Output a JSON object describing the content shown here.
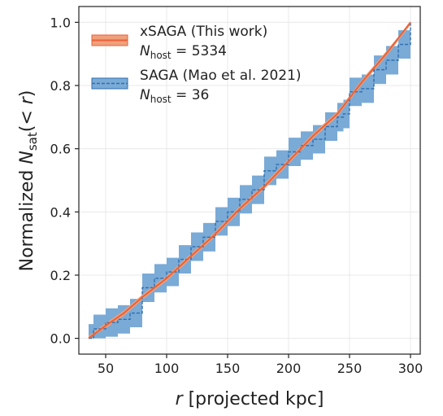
{
  "chart_data": {
    "type": "line",
    "xlabel": "r [projected kpc]",
    "ylabel": "Normalized N_sat(< r)",
    "xlim": [
      28,
      308
    ],
    "ylim": [
      -0.05,
      1.05
    ],
    "xticks": [
      50,
      100,
      150,
      200,
      250,
      300
    ],
    "yticks": [
      0.0,
      0.2,
      0.4,
      0.6,
      0.8,
      1.0
    ],
    "xtick_labels": [
      "50",
      "100",
      "150",
      "200",
      "250",
      "300"
    ],
    "ytick_labels": [
      "0.0",
      "0.2",
      "0.4",
      "0.6",
      "0.8",
      "1.0"
    ],
    "grid": true,
    "legend_position": "top-left",
    "series": [
      {
        "name": "xSAGA (This work)",
        "n_host_label": "N_host = 5334",
        "color": "#e8623a",
        "band_color": "#f0a07a",
        "style": "solid",
        "x": [
          36,
          50,
          65,
          80,
          100,
          120,
          140,
          160,
          180,
          200,
          220,
          240,
          250,
          260,
          280,
          300
        ],
        "y": [
          0.0,
          0.04,
          0.08,
          0.13,
          0.19,
          0.26,
          0.33,
          0.41,
          0.48,
          0.56,
          0.64,
          0.71,
          0.76,
          0.81,
          0.9,
          1.0
        ],
        "band_halfwidth": 0.008
      },
      {
        "name": "SAGA (Mao et al. 2021)",
        "n_host_label": "N_host = 36",
        "color": "#2f6fb0",
        "band_color": "#7aaad6",
        "style": "dashed",
        "x": [
          36,
          40,
          50,
          60,
          70,
          80,
          90,
          100,
          110,
          120,
          130,
          140,
          150,
          160,
          170,
          180,
          190,
          200,
          210,
          220,
          230,
          240,
          245,
          250,
          260,
          270,
          280,
          290,
          300
        ],
        "y": [
          0.0,
          0.03,
          0.05,
          0.06,
          0.08,
          0.16,
          0.19,
          0.21,
          0.25,
          0.29,
          0.32,
          0.37,
          0.4,
          0.44,
          0.47,
          0.53,
          0.55,
          0.59,
          0.61,
          0.63,
          0.67,
          0.7,
          0.71,
          0.78,
          0.79,
          0.85,
          0.88,
          0.93,
          1.0
        ],
        "band_halfwidth": 0.045
      }
    ]
  },
  "legend": [
    {
      "name": "xSAGA (This work)",
      "nhost_value": "5334"
    },
    {
      "name": "SAGA (Mao et al. 2021)",
      "nhost_value": "36"
    }
  ],
  "colors": {
    "xsaga_line": "#e8623a",
    "xsaga_band": "#f0a07a",
    "saga_line": "#2f6fb0",
    "saga_band": "#7aaad6"
  }
}
